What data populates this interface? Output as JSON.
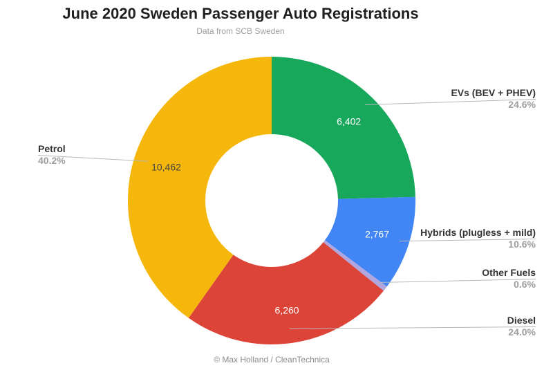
{
  "title": "June 2020 Sweden Passenger Auto Registrations",
  "subtitle": "Data from SCB Sweden",
  "footer": "© Max Holland / CleanTechnica",
  "chart_data": {
    "type": "pie",
    "subtype": "donut",
    "title": "June 2020 Sweden Passenger Auto Registrations",
    "subtitle": "Data from SCB Sweden",
    "start_angle": "12 o'clock, clockwise",
    "donut_hole_ratio": 0.46,
    "slices": [
      {
        "label": "EVs (BEV + PHEV)",
        "value": 6402,
        "value_display": "6,402",
        "pct": 24.6,
        "pct_display": "24.6%",
        "color": "#17A85B",
        "value_label_color": "#ffffff"
      },
      {
        "label": "Hybrids (plugless + mild)",
        "value": 2767,
        "value_display": "2,767",
        "pct": 10.6,
        "pct_display": "10.6%",
        "color": "#4285F4",
        "value_label_color": "#ffffff"
      },
      {
        "label": "Other Fuels",
        "pct": 0.6,
        "pct_display": "0.6%",
        "color": "#B0A7E0"
      },
      {
        "label": "Diesel",
        "value": 6260,
        "value_display": "6,260",
        "pct": 24.0,
        "pct_display": "24.0%",
        "color": "#DC4437",
        "value_label_color": "#ffffff"
      },
      {
        "label": "Petrol",
        "value": 10462,
        "value_display": "10,462",
        "pct": 40.2,
        "pct_display": "40.2%",
        "color": "#F6B70D",
        "value_label_color": "#424242"
      }
    ],
    "callout_line_color": "#b7b7b7"
  }
}
